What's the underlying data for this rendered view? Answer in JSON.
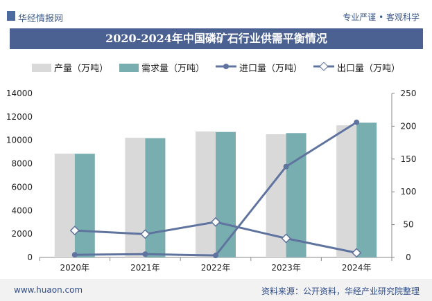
{
  "header": {
    "brand": "华经情报网",
    "slogan": "专业严谨 • 客观科学",
    "title": "2020-2024年中国磷矿石行业供需平衡情况"
  },
  "footer": {
    "url": "www.huaon.com",
    "source": "资料来源：公开资料，华经产业研究院整理"
  },
  "chart_data": {
    "type": "bar+line",
    "title": "2020-2024年中国磷矿石行业供需平衡情况",
    "categories": [
      "2020年",
      "2021年",
      "2022年",
      "2023年",
      "2024年"
    ],
    "left_axis": {
      "range": [
        0,
        14000
      ],
      "ticks": [
        0,
        2000,
        4000,
        6000,
        8000,
        10000,
        12000,
        14000
      ]
    },
    "right_axis": {
      "range": [
        0,
        250
      ],
      "ticks": [
        0,
        50,
        100,
        150,
        200,
        250
      ]
    },
    "legend_position": "top",
    "grid": false,
    "series": [
      {
        "name": "产量（万吨）",
        "type": "bar",
        "axis": "left",
        "color": "#d9d9d9",
        "values": [
          8860,
          10220,
          10750,
          10515,
          11280
        ]
      },
      {
        "name": "需求量（万吨）",
        "type": "bar",
        "axis": "left",
        "color": "#79aeb0",
        "values": [
          8850,
          10180,
          10710,
          10615,
          11500
        ]
      },
      {
        "name": "进口量（万吨）",
        "type": "line",
        "axis": "right",
        "color": "#5f739f",
        "marker": "circle",
        "values": [
          4,
          5,
          3,
          138.5,
          206
        ]
      },
      {
        "name": "出口量（万吨）",
        "type": "line",
        "axis": "right",
        "color": "#5f739f",
        "marker": "diamond",
        "values": [
          41,
          35.5,
          54,
          29,
          7
        ]
      }
    ]
  }
}
